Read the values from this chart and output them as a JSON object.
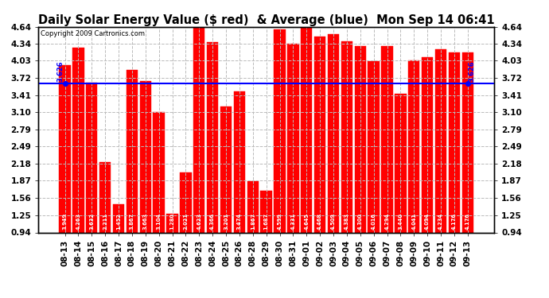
{
  "title": "Daily Solar Energy Value ($ red)  & Average (blue)  Mon Sep 14 06:41",
  "copyright": "Copyright 2009 Cartronics.com",
  "categories": [
    "08-13",
    "08-14",
    "08-15",
    "08-16",
    "08-17",
    "08-18",
    "08-19",
    "08-20",
    "08-21",
    "08-22",
    "08-23",
    "08-24",
    "08-25",
    "08-26",
    "08-28",
    "08-29",
    "08-30",
    "08-31",
    "09-01",
    "09-02",
    "09-03",
    "09-04",
    "09-05",
    "09-06",
    "09-07",
    "09-08",
    "09-09",
    "09-10",
    "09-11",
    "09-12",
    "09-13"
  ],
  "values": [
    3.949,
    4.263,
    3.632,
    2.211,
    1.452,
    3.867,
    3.663,
    3.104,
    1.28,
    2.021,
    4.623,
    4.366,
    3.201,
    3.474,
    1.867,
    1.687,
    4.599,
    4.331,
    4.645,
    4.468,
    4.509,
    4.383,
    4.3,
    4.016,
    4.294,
    3.44,
    4.041,
    4.094,
    4.234,
    4.176,
    4.176
  ],
  "average": 3.626,
  "bar_color": "#ff0000",
  "avg_line_color": "#0000ff",
  "background_color": "#ffffff",
  "grid_color": "#bbbbbb",
  "ylim_min": 0.94,
  "ylim_max": 4.64,
  "yticks": [
    0.94,
    1.25,
    1.56,
    1.87,
    2.18,
    2.49,
    2.79,
    3.1,
    3.41,
    3.72,
    4.03,
    4.34,
    4.64
  ],
  "title_fontsize": 10.5,
  "copyright_fontsize": 6,
  "bar_label_fontsize": 4.8,
  "tick_fontsize": 7.5,
  "avg_label": "3.626"
}
